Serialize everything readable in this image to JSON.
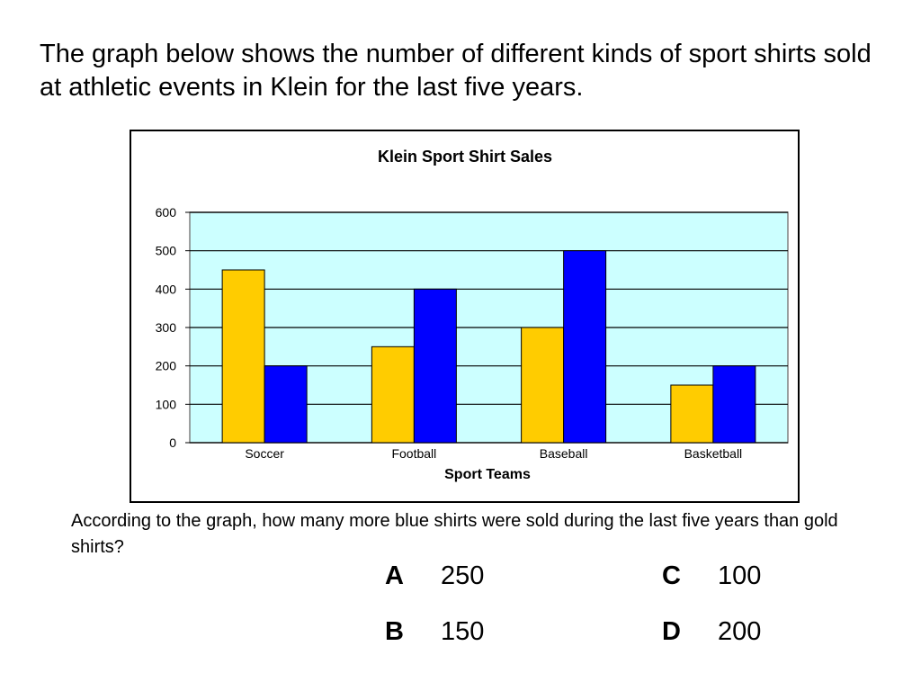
{
  "intro_text": "The graph below shows the number of different kinds of sport shirts sold at athletic events in Klein for the last five years.",
  "question_text": "According to the graph, how many more blue shirts were sold during the last five years than gold shirts?",
  "choices": [
    {
      "letter": "A",
      "value": "250"
    },
    {
      "letter": "B",
      "value": "150"
    },
    {
      "letter": "C",
      "value": "100"
    },
    {
      "letter": "D",
      "value": "200"
    }
  ],
  "colors": {
    "plot_background": "#ccffff",
    "gold_series": "#ffcc00",
    "blue_series": "#0000ff",
    "gridline": "#000000",
    "border": "#000000"
  },
  "chart_data": {
    "type": "bar",
    "title": "Klein Sport Shirt Sales",
    "xlabel": "Sport Teams",
    "ylabel": "",
    "categories": [
      "Soccer",
      "Football",
      "Baseball",
      "Basketball"
    ],
    "series": [
      {
        "color": "#ffcc00",
        "values": [
          450,
          250,
          300,
          150
        ]
      },
      {
        "color": "#0000ff",
        "values": [
          200,
          400,
          500,
          200
        ]
      }
    ],
    "ylim": [
      0,
      600
    ],
    "yticks": [
      0,
      100,
      200,
      300,
      400,
      500,
      600
    ],
    "grid": true,
    "legend": "none"
  }
}
